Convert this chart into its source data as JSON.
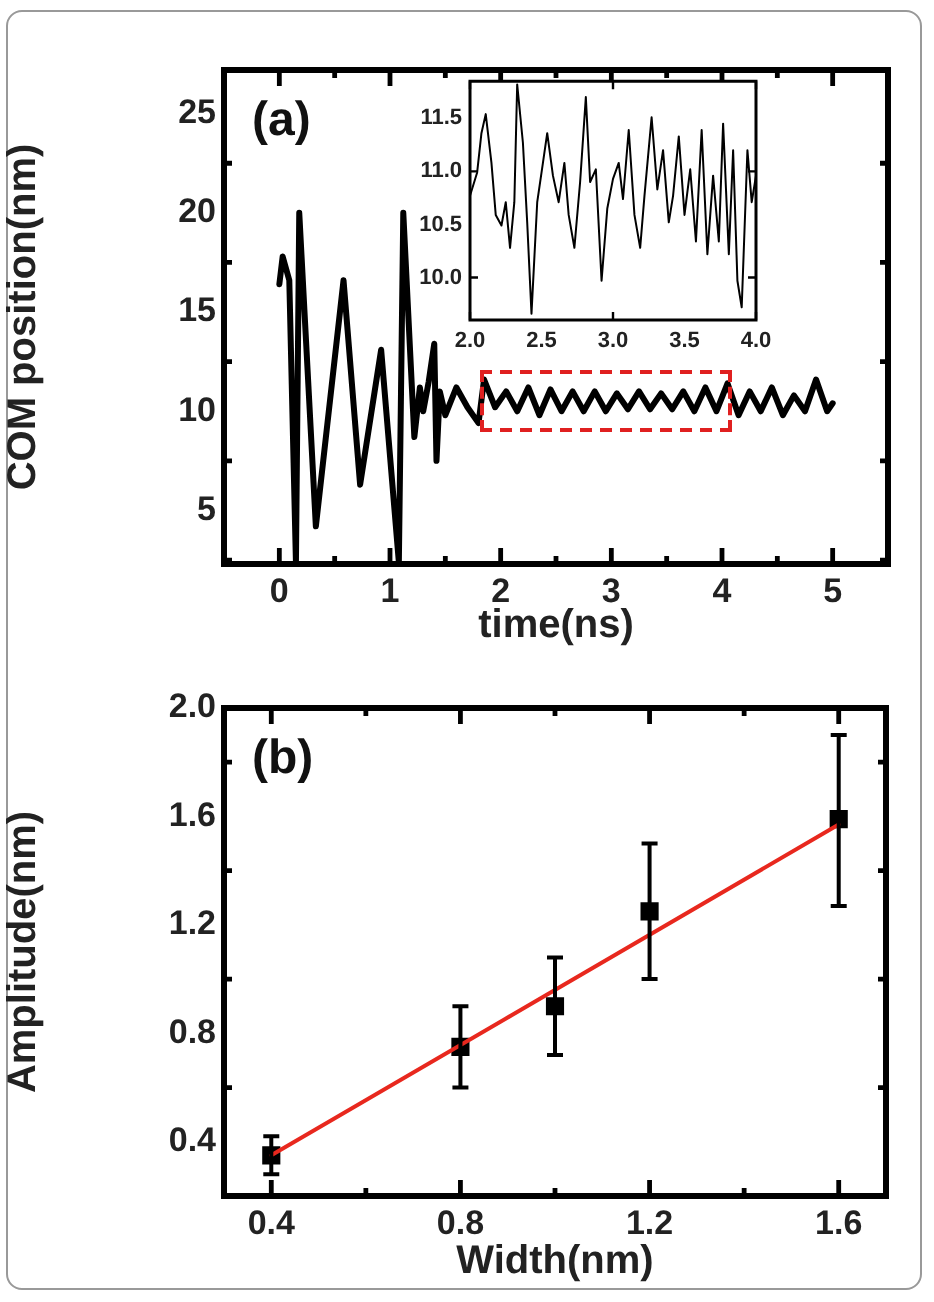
{
  "chart_data": [
    {
      "type": "line",
      "xlabel": "time(ns)",
      "ylabel": "COM position(nm)",
      "annotations": [
        "(a)"
      ],
      "xlim": [
        -0.5,
        5.5
      ],
      "ylim": [
        2.3,
        27.2
      ],
      "xticks": [
        0,
        {
          "value": 0.5,
          "label": null
        },
        1,
        {
          "value": 1.5,
          "label": null
        },
        2,
        {
          "value": 2.5,
          "label": null
        },
        3,
        {
          "value": 3.5,
          "label": null
        },
        4,
        {
          "value": 4.5,
          "label": null
        },
        5
      ],
      "yticks": [
        {
          "value": 2.5,
          "label": null
        },
        5,
        {
          "value": 7.5,
          "label": null
        },
        10,
        {
          "value": 12.5,
          "label": null
        },
        15,
        {
          "value": 17.5,
          "label": null
        },
        20,
        {
          "value": 22.5,
          "label": null
        },
        25
      ],
      "x": [
        0,
        0.03,
        0.09,
        0.15,
        0.18,
        0.33,
        0.58,
        0.73,
        0.92,
        1.08,
        1.12,
        1.22,
        1.27,
        1.3,
        1.35,
        1.4,
        1.42,
        1.45,
        1.5,
        1.6,
        1.7,
        1.8,
        1.85,
        1.95,
        2.05,
        2.15,
        2.25,
        2.35,
        2.45,
        2.55,
        2.65,
        2.75,
        2.85,
        2.95,
        3.05,
        3.15,
        3.25,
        3.35,
        3.45,
        3.55,
        3.65,
        3.75,
        3.85,
        3.95,
        4.05,
        4.15,
        4.25,
        4.35,
        4.45,
        4.55,
        4.65,
        4.75,
        4.85,
        4.95,
        5.0
      ],
      "series": [
        {
          "color": "#000000",
          "values": [
            16.4,
            17.8,
            16.6,
            2.4,
            20,
            4.2,
            16.6,
            6.3,
            13.1,
            2.4,
            20,
            8.7,
            11.2,
            10.0,
            11.5,
            13.4,
            7.5,
            11.0,
            9.8,
            11.2,
            10.2,
            9.4,
            11.6,
            10.2,
            11.0,
            10.0,
            11.2,
            9.8,
            11.1,
            10.0,
            11.0,
            10.0,
            11.0,
            10.0,
            10.9,
            10.1,
            11.0,
            10.1,
            10.9,
            10.1,
            11.0,
            10.0,
            11.2,
            10.0,
            11.4,
            9.8,
            11.0,
            10.0,
            11.2,
            9.8,
            10.8,
            10.0,
            11.6,
            10.0,
            10.4
          ]
        }
      ]
    },
    {
      "type": "line",
      "xlim": [
        2.0,
        4.0
      ],
      "ylim": [
        9.6,
        11.85
      ],
      "xticks": [
        {
          "value": 2,
          "label": "2.0"
        },
        2.5,
        {
          "value": 3,
          "label": "3.0"
        },
        3.5,
        {
          "value": 4,
          "label": "4.0"
        }
      ],
      "yticks": [
        {
          "value": 10,
          "label": "10.0"
        },
        10.5,
        {
          "value": 11,
          "label": "11.0"
        },
        11.5
      ],
      "x": [
        2.0,
        2.05,
        2.08,
        2.11,
        2.15,
        2.18,
        2.22,
        2.25,
        2.28,
        2.31,
        2.33,
        2.37,
        2.4,
        2.43,
        2.47,
        2.51,
        2.54,
        2.58,
        2.62,
        2.66,
        2.69,
        2.73,
        2.77,
        2.81,
        2.84,
        2.88,
        2.92,
        2.96,
        3.0,
        3.04,
        3.07,
        3.11,
        3.15,
        3.19,
        3.22,
        3.27,
        3.31,
        3.35,
        3.39,
        3.42,
        3.46,
        3.5,
        3.54,
        3.58,
        3.62,
        3.66,
        3.7,
        3.74,
        3.77,
        3.81,
        3.84,
        3.87,
        3.9,
        3.94,
        3.97,
        4.0
      ],
      "series": [
        {
          "color": "#000000",
          "values": [
            10.77,
            10.99,
            11.36,
            11.54,
            11.08,
            10.59,
            10.49,
            10.71,
            10.28,
            10.71,
            11.82,
            11.27,
            10.52,
            9.66,
            10.71,
            11.08,
            11.36,
            10.96,
            10.71,
            11.08,
            10.59,
            10.28,
            10.9,
            11.7,
            10.9,
            11.02,
            9.97,
            10.65,
            10.93,
            11.08,
            10.74,
            11.39,
            10.59,
            10.28,
            10.77,
            11.51,
            10.83,
            11.2,
            10.52,
            10.77,
            11.33,
            10.59,
            11.02,
            10.34,
            11.39,
            10.22,
            10.96,
            10.34,
            11.45,
            10.22,
            11.2,
            9.97,
            9.72,
            11.2,
            10.71,
            10.96
          ]
        }
      ]
    },
    {
      "type": "scatter",
      "xlabel": "Width(nm)",
      "ylabel": "Amplitude(nm)",
      "annotations": [
        "(b)"
      ],
      "marker": "square",
      "xlim": [
        0.3,
        1.7
      ],
      "ylim": [
        0.2,
        2.0
      ],
      "xticks": [
        0.4,
        {
          "value": 0.6,
          "label": null
        },
        0.8,
        {
          "value": 1.0,
          "label": null
        },
        1.2,
        {
          "value": 1.4,
          "label": null
        },
        1.6
      ],
      "yticks": [
        {
          "value": 0.2,
          "label": null
        },
        0.4,
        {
          "value": 0.6,
          "label": null
        },
        0.8,
        {
          "value": 1.0,
          "label": null
        },
        1.2,
        {
          "value": 1.4,
          "label": null
        },
        1.6,
        {
          "value": 1.8,
          "label": null
        },
        {
          "value": 2.0,
          "label": "2.0"
        }
      ],
      "x": [
        0.4,
        0.8,
        1.0,
        1.2,
        1.6
      ],
      "series": [
        {
          "color": "#000000",
          "values": [
            0.35,
            0.75,
            0.9,
            1.25,
            1.59
          ],
          "errors": [
            [
              0.28,
              0.42
            ],
            [
              0.6,
              0.9
            ],
            [
              0.72,
              1.08
            ],
            [
              1.0,
              1.5
            ],
            [
              1.27,
              1.9
            ]
          ]
        },
        {
          "type": "line",
          "marker": "none",
          "color": "#e8281e",
          "x": [
            0.4,
            1.6
          ],
          "values": [
            0.35,
            1.57
          ]
        }
      ]
    }
  ]
}
